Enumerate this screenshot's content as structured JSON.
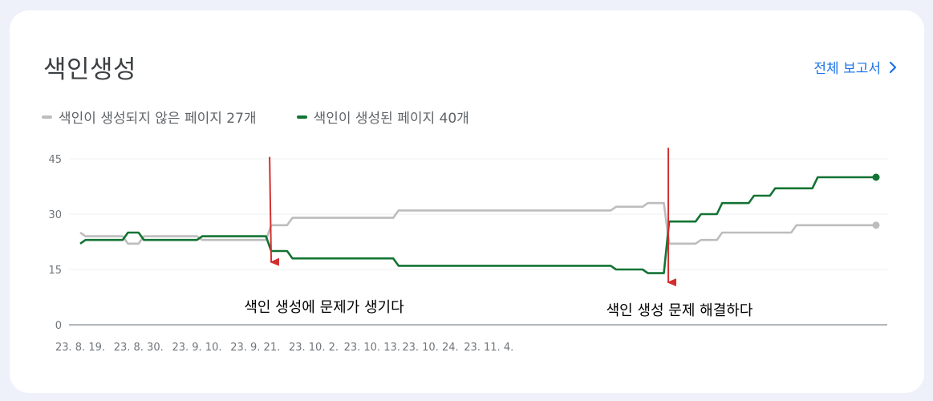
{
  "card": {
    "title": "색인생성",
    "report_link": "전체 보고서"
  },
  "legend": [
    {
      "label": "색인이 생성되지 않은 페이지 27개",
      "color": "#bdbdbd"
    },
    {
      "label": "색인이 생성된 페이지 40개",
      "color": "#137333"
    }
  ],
  "chart_data": {
    "type": "line",
    "ylim": [
      0,
      45
    ],
    "yticks": [
      "0",
      "15",
      "30",
      "45"
    ],
    "xtick_labels": [
      "23. 8. 19.",
      "23. 8. 30.",
      "23. 9. 10.",
      "23. 9. 21.",
      "23. 10. 2.",
      "23. 10. 13.",
      "23. 10. 24.",
      "23. 11. 4."
    ],
    "series": [
      {
        "name": "색인이 생성되지 않은 페이지 27개",
        "color": "#bdbdbd",
        "values": [
          25,
          24,
          24,
          24,
          24,
          24,
          24,
          24,
          24,
          22,
          22,
          22,
          24,
          24,
          24,
          24,
          24,
          24,
          24,
          24,
          24,
          24,
          24,
          23,
          23,
          23,
          23,
          23,
          23,
          23,
          23,
          23,
          23,
          23,
          23,
          23,
          27,
          27,
          27,
          27,
          29,
          29,
          29,
          29,
          29,
          29,
          29,
          29,
          29,
          29,
          29,
          29,
          29,
          29,
          29,
          29,
          29,
          29,
          29,
          29,
          31,
          31,
          31,
          31,
          31,
          31,
          31,
          31,
          31,
          31,
          31,
          31,
          31,
          31,
          31,
          31,
          31,
          31,
          31,
          31,
          31,
          31,
          31,
          31,
          31,
          31,
          31,
          31,
          31,
          31,
          31,
          31,
          31,
          31,
          31,
          31,
          31,
          31,
          31,
          31,
          31,
          32,
          32,
          32,
          32,
          32,
          32,
          33,
          33,
          33,
          33,
          22,
          22,
          22,
          22,
          22,
          22,
          23,
          23,
          23,
          23,
          25,
          25,
          25,
          25,
          25,
          25,
          25,
          25,
          25,
          25,
          25,
          25,
          25,
          25,
          27,
          27,
          27,
          27,
          27,
          27,
          27,
          27,
          27,
          27,
          27,
          27,
          27,
          27,
          27,
          27
        ]
      },
      {
        "name": "색인이 생성된 페이지 40개",
        "color": "#137333",
        "values": [
          22,
          23,
          23,
          23,
          23,
          23,
          23,
          23,
          23,
          25,
          25,
          25,
          23,
          23,
          23,
          23,
          23,
          23,
          23,
          23,
          23,
          23,
          23,
          24,
          24,
          24,
          24,
          24,
          24,
          24,
          24,
          24,
          24,
          24,
          24,
          24,
          20,
          20,
          20,
          20,
          18,
          18,
          18,
          18,
          18,
          18,
          18,
          18,
          18,
          18,
          18,
          18,
          18,
          18,
          18,
          18,
          18,
          18,
          18,
          18,
          16,
          16,
          16,
          16,
          16,
          16,
          16,
          16,
          16,
          16,
          16,
          16,
          16,
          16,
          16,
          16,
          16,
          16,
          16,
          16,
          16,
          16,
          16,
          16,
          16,
          16,
          16,
          16,
          16,
          16,
          16,
          16,
          16,
          16,
          16,
          16,
          16,
          16,
          16,
          16,
          16,
          15,
          15,
          15,
          15,
          15,
          15,
          14,
          14,
          14,
          14,
          28,
          28,
          28,
          28,
          28,
          28,
          30,
          30,
          30,
          30,
          33,
          33,
          33,
          33,
          33,
          33,
          35,
          35,
          35,
          35,
          37,
          37,
          37,
          37,
          37,
          37,
          37,
          37,
          40,
          40,
          40,
          40,
          40,
          40,
          40,
          40,
          40,
          40,
          40,
          40
        ]
      }
    ],
    "annotations": [
      {
        "text": "색인 생성에 문제가 생기다",
        "color": "#d32f2f"
      },
      {
        "text": "색인 생성 문제 해결하다",
        "color": "#d32f2f"
      }
    ]
  }
}
